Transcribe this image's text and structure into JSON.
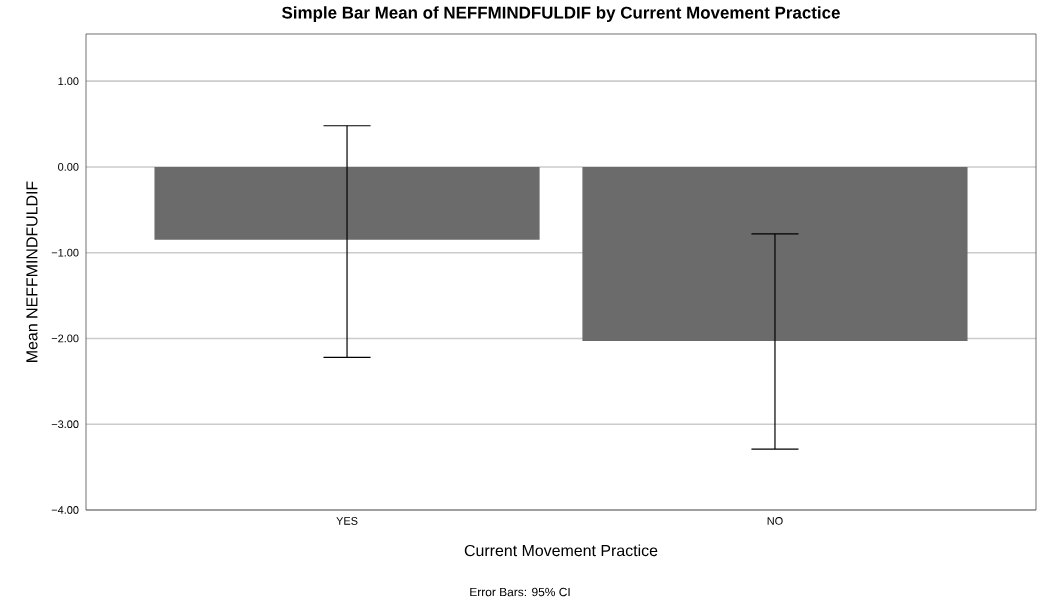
{
  "chart_data": {
    "type": "bar",
    "title": "Simple Bar Mean of NEFFMINDFULDIF by Current Movement Practice",
    "xlabel": "Current Movement Practice",
    "ylabel": "Mean NEFFMINDFULDIF",
    "categories": [
      "YES",
      "NO"
    ],
    "values": [
      -0.85,
      -2.03
    ],
    "color": "#6b6b6b",
    "errors": [
      [
        -2.22,
        0.48
      ],
      [
        -3.29,
        -0.78
      ]
    ],
    "ylim": [
      -4,
      1.55
    ],
    "yticks": [
      {
        "value": -4,
        "label": "−4.00"
      },
      {
        "value": -3,
        "label": "−3.00"
      },
      {
        "value": -2,
        "label": "−2.00"
      },
      {
        "value": -1,
        "label": "−1.00"
      },
      {
        "value": 0,
        "label": "0.00"
      },
      {
        "value": 1,
        "label": "1.00"
      }
    ],
    "grid": "y",
    "annotations": [
      "Error Bars: 95% CI"
    ]
  }
}
